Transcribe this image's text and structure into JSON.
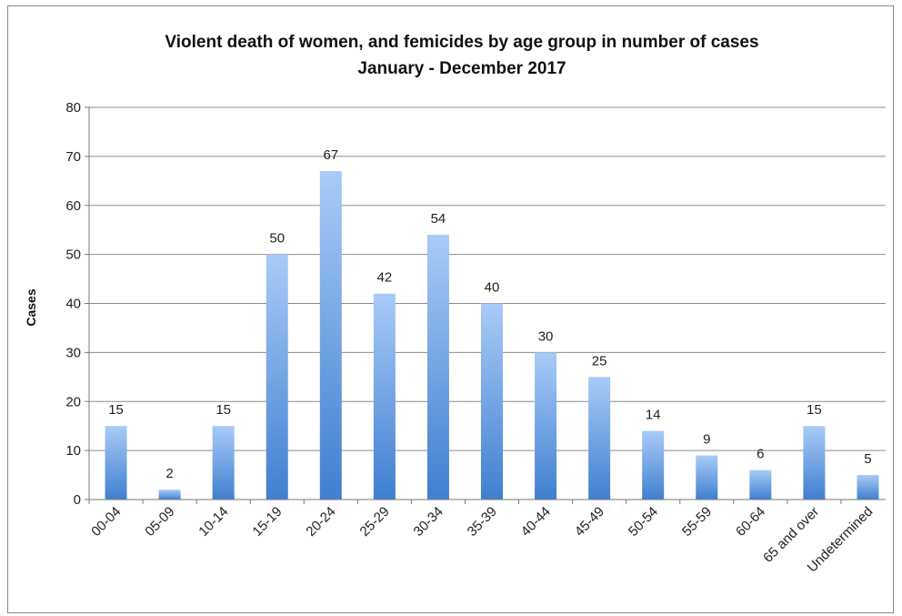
{
  "chart_data": {
    "type": "bar",
    "title": "Violent death of women, and femicides by age group in number of cases",
    "subtitle": "January - December 2017",
    "xlabel": "",
    "ylabel": "Cases",
    "ylim": [
      0,
      80
    ],
    "yticks": [
      0,
      10,
      20,
      30,
      40,
      50,
      60,
      70,
      80
    ],
    "grid": true,
    "legend": "none",
    "bar_color_top": "#a9cbf7",
    "bar_color_bottom": "#3f7fd0",
    "categories": [
      "00-04",
      "05-09",
      "10-14",
      "15-19",
      "20-24",
      "25-29",
      "30-34",
      "35-39",
      "40-44",
      "45-49",
      "50-54",
      "55-59",
      "60-64",
      "65 and over",
      "Undetermined"
    ],
    "values": [
      15,
      2,
      15,
      50,
      67,
      42,
      54,
      40,
      30,
      25,
      14,
      9,
      6,
      15,
      5
    ],
    "data_labels": [
      "15",
      "2",
      "15",
      "50",
      "67",
      "42",
      "54",
      "40",
      "30",
      "25",
      "14",
      "9",
      "6",
      "15",
      "5"
    ]
  }
}
